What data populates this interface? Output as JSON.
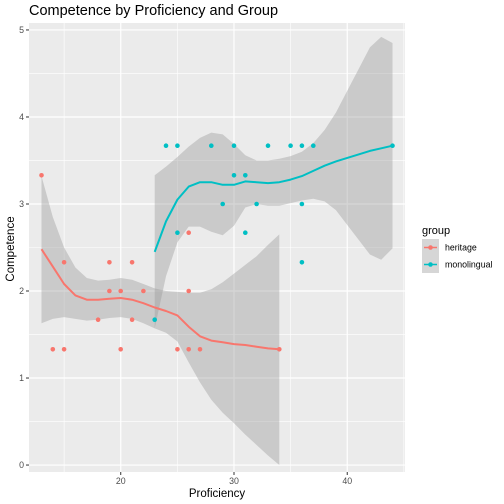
{
  "chart_data": {
    "type": "scatter",
    "title": "Competence by Proficiency and Group",
    "xlabel": "Proficiency",
    "ylabel": "Competence",
    "xlim": [
      11.9,
      45.1
    ],
    "ylim": [
      -0.08,
      5.08
    ],
    "x_ticks": [
      20,
      30,
      40
    ],
    "y_ticks": [
      0,
      1,
      2,
      3,
      4,
      5
    ],
    "x_tick_labels": [
      "20",
      "30",
      "40"
    ],
    "y_tick_labels": [
      "0",
      "1",
      "2",
      "3",
      "4",
      "5"
    ],
    "grid": true,
    "legend": {
      "title": "group",
      "position": "right"
    },
    "series": [
      {
        "name": "heritage",
        "color": "#F8766D",
        "points": [
          [
            13,
            3.33
          ],
          [
            14,
            1.33
          ],
          [
            15,
            2.33
          ],
          [
            15,
            1.33
          ],
          [
            18,
            1.67
          ],
          [
            19,
            2.33
          ],
          [
            19,
            2.0
          ],
          [
            20,
            2.0
          ],
          [
            20,
            1.33
          ],
          [
            21,
            2.33
          ],
          [
            21,
            1.67
          ],
          [
            22,
            2.0
          ],
          [
            25,
            1.33
          ],
          [
            26,
            2.67
          ],
          [
            26,
            2.0
          ],
          [
            26,
            1.33
          ],
          [
            27,
            1.33
          ],
          [
            34,
            1.33
          ]
        ],
        "smooth": [
          [
            13,
            2.48
          ],
          [
            14,
            2.28
          ],
          [
            15,
            2.08
          ],
          [
            16,
            1.95
          ],
          [
            17,
            1.9
          ],
          [
            18,
            1.9
          ],
          [
            19,
            1.91
          ],
          [
            20,
            1.92
          ],
          [
            21,
            1.9
          ],
          [
            22,
            1.86
          ],
          [
            23,
            1.81
          ],
          [
            24,
            1.77
          ],
          [
            25,
            1.72
          ],
          [
            26,
            1.59
          ],
          [
            27,
            1.48
          ],
          [
            28,
            1.43
          ],
          [
            29,
            1.41
          ],
          [
            30,
            1.39
          ],
          [
            31,
            1.38
          ],
          [
            32,
            1.36
          ],
          [
            33,
            1.34
          ],
          [
            34,
            1.33
          ]
        ],
        "band_upper": [
          [
            13,
            3.32
          ],
          [
            14,
            2.85
          ],
          [
            15,
            2.5
          ],
          [
            16,
            2.27
          ],
          [
            17,
            2.15
          ],
          [
            18,
            2.12
          ],
          [
            19,
            2.13
          ],
          [
            20,
            2.15
          ],
          [
            21,
            2.13
          ],
          [
            22,
            2.08
          ],
          [
            23,
            2.03
          ],
          [
            24,
            2.0
          ],
          [
            25,
            1.99
          ],
          [
            26,
            1.98
          ],
          [
            27,
            1.98
          ],
          [
            28,
            2.02
          ],
          [
            29,
            2.1
          ],
          [
            30,
            2.2
          ],
          [
            31,
            2.3
          ],
          [
            32,
            2.4
          ],
          [
            33,
            2.53
          ],
          [
            34,
            2.65
          ]
        ],
        "band_lower": [
          [
            13,
            1.63
          ],
          [
            14,
            1.68
          ],
          [
            15,
            1.7
          ],
          [
            16,
            1.68
          ],
          [
            17,
            1.66
          ],
          [
            18,
            1.67
          ],
          [
            19,
            1.69
          ],
          [
            20,
            1.7
          ],
          [
            21,
            1.68
          ],
          [
            22,
            1.63
          ],
          [
            23,
            1.57
          ],
          [
            24,
            1.52
          ],
          [
            25,
            1.42
          ],
          [
            26,
            1.18
          ],
          [
            27,
            0.95
          ],
          [
            28,
            0.75
          ],
          [
            29,
            0.6
          ],
          [
            30,
            0.48
          ],
          [
            31,
            0.35
          ],
          [
            32,
            0.23
          ],
          [
            33,
            0.11
          ],
          [
            34,
            0.0
          ]
        ]
      },
      {
        "name": "monolingual",
        "color": "#00BFC4",
        "points": [
          [
            23,
            1.67
          ],
          [
            24,
            3.67
          ],
          [
            25,
            3.67
          ],
          [
            25,
            2.67
          ],
          [
            28,
            3.67
          ],
          [
            29,
            3.0
          ],
          [
            30,
            3.67
          ],
          [
            30,
            3.33
          ],
          [
            31,
            3.33
          ],
          [
            31,
            2.67
          ],
          [
            32,
            3.0
          ],
          [
            33,
            3.67
          ],
          [
            35,
            3.67
          ],
          [
            36,
            3.67
          ],
          [
            36,
            3.0
          ],
          [
            36,
            2.33
          ],
          [
            37,
            3.67
          ],
          [
            44,
            3.67
          ]
        ],
        "smooth": [
          [
            23,
            2.45
          ],
          [
            24,
            2.8
          ],
          [
            25,
            3.05
          ],
          [
            26,
            3.2
          ],
          [
            27,
            3.25
          ],
          [
            28,
            3.25
          ],
          [
            29,
            3.22
          ],
          [
            30,
            3.22
          ],
          [
            31,
            3.26
          ],
          [
            32,
            3.25
          ],
          [
            33,
            3.24
          ],
          [
            34,
            3.25
          ],
          [
            35,
            3.28
          ],
          [
            36,
            3.32
          ],
          [
            37,
            3.38
          ],
          [
            38,
            3.44
          ],
          [
            39,
            3.49
          ],
          [
            40,
            3.53
          ],
          [
            41,
            3.57
          ],
          [
            42,
            3.61
          ],
          [
            43,
            3.64
          ],
          [
            44,
            3.67
          ]
        ],
        "band_upper": [
          [
            23,
            3.33
          ],
          [
            24,
            3.43
          ],
          [
            25,
            3.54
          ],
          [
            26,
            3.66
          ],
          [
            27,
            3.76
          ],
          [
            28,
            3.82
          ],
          [
            29,
            3.8
          ],
          [
            30,
            3.69
          ],
          [
            31,
            3.56
          ],
          [
            32,
            3.5
          ],
          [
            33,
            3.5
          ],
          [
            34,
            3.52
          ],
          [
            35,
            3.55
          ],
          [
            36,
            3.6
          ],
          [
            37,
            3.7
          ],
          [
            38,
            3.85
          ],
          [
            39,
            4.05
          ],
          [
            40,
            4.3
          ],
          [
            41,
            4.55
          ],
          [
            42,
            4.8
          ],
          [
            43,
            4.92
          ],
          [
            44,
            4.85
          ]
        ],
        "band_lower": [
          [
            23,
            1.57
          ],
          [
            24,
            2.17
          ],
          [
            25,
            2.56
          ],
          [
            26,
            2.74
          ],
          [
            27,
            2.74
          ],
          [
            28,
            2.68
          ],
          [
            29,
            2.64
          ],
          [
            30,
            2.75
          ],
          [
            31,
            2.96
          ],
          [
            32,
            3.0
          ],
          [
            33,
            2.98
          ],
          [
            34,
            2.98
          ],
          [
            35,
            3.01
          ],
          [
            36,
            3.04
          ],
          [
            37,
            3.06
          ],
          [
            38,
            3.03
          ],
          [
            39,
            2.93
          ],
          [
            40,
            2.76
          ],
          [
            41,
            2.59
          ],
          [
            42,
            2.42
          ],
          [
            43,
            2.36
          ],
          [
            44,
            2.49
          ]
        ]
      }
    ]
  }
}
